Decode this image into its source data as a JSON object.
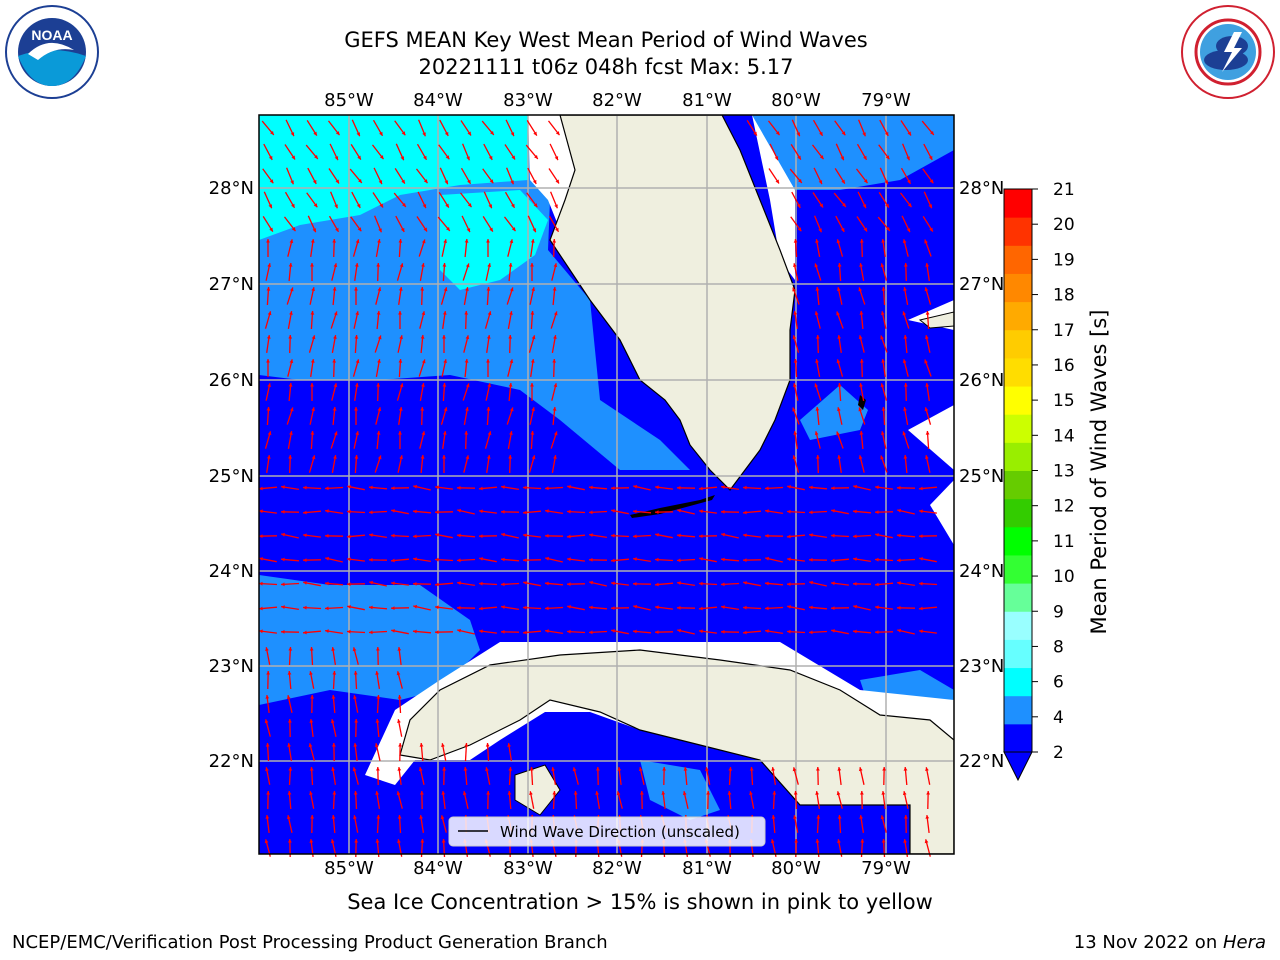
{
  "title_line1": "GEFS MEAN Key West Mean Period of Wind Waves",
  "title_line2": "20221111 t06z 048h fcst   Max: 5.17",
  "logos": {
    "left": "noaa-logo",
    "right": "nws-logo"
  },
  "map": {
    "lon_labels": [
      "85°W",
      "84°W",
      "83°W",
      "82°W",
      "81°W",
      "80°W",
      "79°W"
    ],
    "lat_labels": [
      "28°N",
      "27°N",
      "26°N",
      "25°N",
      "24°N",
      "23°N",
      "22°N"
    ],
    "legend_label": "Wind Wave Direction (unscaled)",
    "colors": {
      "level_2_4": "#0000ff",
      "level_4_6": "#1e90ff",
      "level_6_8": "#00ffff",
      "land": "#efefdf",
      "arrow": "#ff0000"
    }
  },
  "colorbar": {
    "label": "Mean Period of Wind Waves [s]",
    "ticks": [
      "2",
      "4",
      "6",
      "8",
      "9",
      "10",
      "11",
      "12",
      "13",
      "14",
      "15",
      "16",
      "17",
      "18",
      "19",
      "20",
      "21"
    ],
    "bins": [
      "#0000ff",
      "#1e90ff",
      "#00ffff",
      "#66ffff",
      "#99ffff",
      "#66ff99",
      "#33ff33",
      "#00ff00",
      "#33cc00",
      "#66cc00",
      "#99ee00",
      "#ccff00",
      "#ffff00",
      "#ffdd00",
      "#ffcc00",
      "#ffaa00",
      "#ff8800",
      "#ff6600",
      "#ff3300",
      "#ff0000"
    ]
  },
  "caption": "Sea Ice Concentration > 15% is shown in pink to yellow",
  "footer_left": "NCEP/EMC/Verification Post Processing Product Generation Branch",
  "footer_right_date": "13 Nov 2022 on ",
  "footer_right_host": "Hera"
}
